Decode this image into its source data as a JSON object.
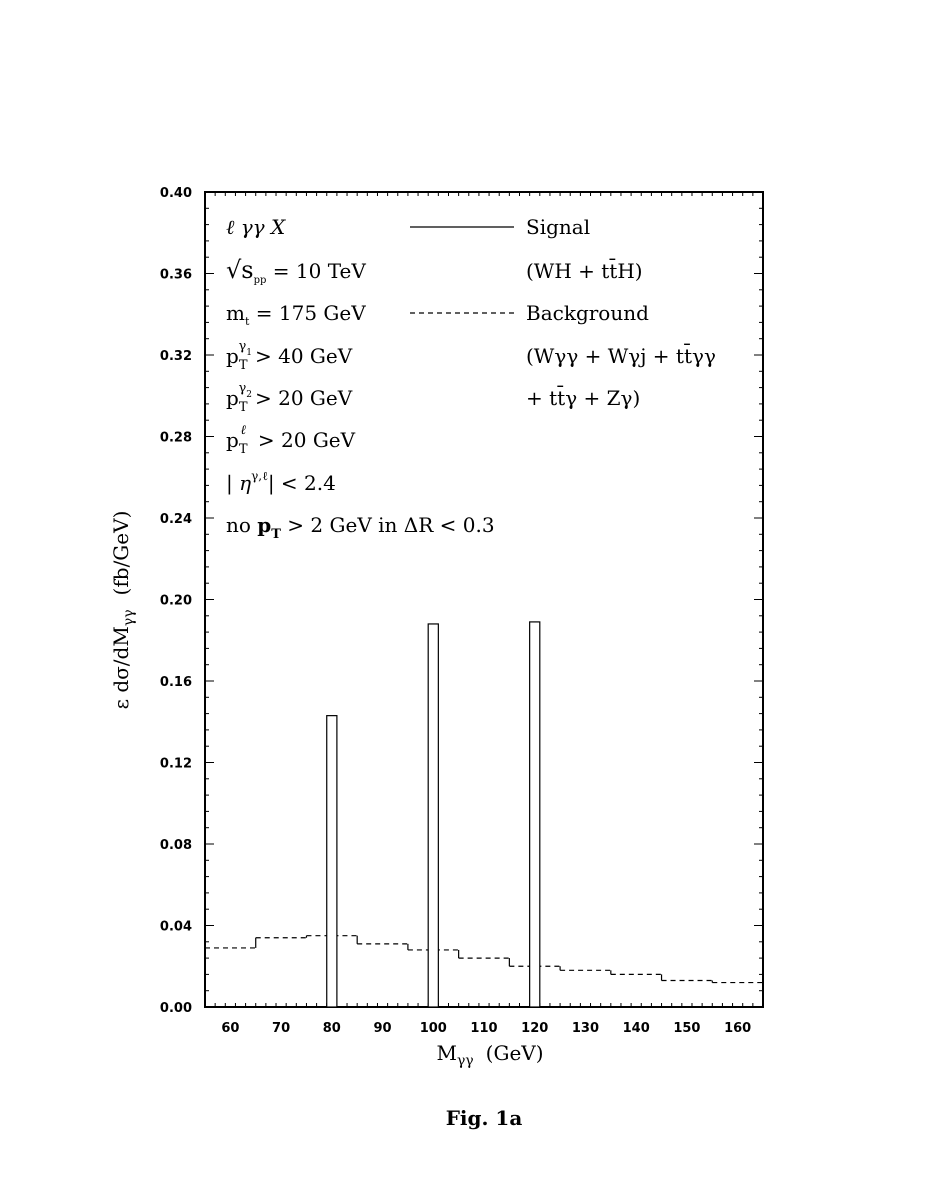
{
  "chart_data": {
    "type": "bar",
    "xlabel": "Mγγ  (GeV)",
    "ylabel": "ε dσ/dMγγ  (fb/GeV)",
    "xlim": [
      55,
      165
    ],
    "ylim": [
      0,
      0.4
    ],
    "x_ticks": [
      "60",
      "70",
      "80",
      "90",
      "100",
      "110",
      "120",
      "130",
      "140",
      "150",
      "160"
    ],
    "y_ticks": [
      "0.00",
      "0.04",
      "0.08",
      "0.12",
      "0.16",
      "0.20",
      "0.24",
      "0.28",
      "0.32",
      "0.36",
      "0.40"
    ],
    "series": [
      {
        "name": "Signal",
        "style": "solid",
        "bars": [
          {
            "x_low": 79,
            "x_high": 81,
            "value": 0.143
          },
          {
            "x_low": 99,
            "x_high": 101,
            "value": 0.188
          },
          {
            "x_low": 119,
            "x_high": 121,
            "value": 0.189
          }
        ]
      },
      {
        "name": "Background",
        "style": "dashed",
        "bins": [
          {
            "x_low": 55,
            "x_high": 65,
            "value": 0.029
          },
          {
            "x_low": 65,
            "x_high": 75,
            "value": 0.034
          },
          {
            "x_low": 75,
            "x_high": 85,
            "value": 0.035
          },
          {
            "x_low": 85,
            "x_high": 95,
            "value": 0.031
          },
          {
            "x_low": 95,
            "x_high": 105,
            "value": 0.028
          },
          {
            "x_low": 105,
            "x_high": 115,
            "value": 0.024
          },
          {
            "x_low": 115,
            "x_high": 125,
            "value": 0.02
          },
          {
            "x_low": 125,
            "x_high": 135,
            "value": 0.018
          },
          {
            "x_low": 135,
            "x_high": 145,
            "value": 0.016
          },
          {
            "x_low": 145,
            "x_high": 155,
            "value": 0.013
          },
          {
            "x_low": 155,
            "x_high": 165,
            "value": 0.012
          }
        ]
      }
    ],
    "cuts": {
      "process": "ℓ γγ X",
      "sqrt_s_prefix": "√s",
      "sqrt_s_sub": "pp",
      "sqrt_s_value": " = 10 TeV",
      "mt_prefix": "m",
      "mt_sub": "t",
      "mt_value": " = 175 GeV",
      "pt1_value": "> 40 GeV",
      "pt2_value": "> 20 GeV",
      "ptl_value": "> 20 GeV",
      "eta_value": "| < 2.4",
      "isolation_prefix": "no ",
      "isolation_value": " > 2 GeV in ΔR < 0.3"
    },
    "legend": {
      "signal_label": "Signal",
      "signal_detail": "(WH + tt̄H)",
      "background_label": "Background",
      "background_detail_1": "(Wγγ + Wγj + tt̄γγ",
      "background_detail_2": "+ tt̄γ + Zγ)"
    }
  },
  "caption": "Fig. 1a"
}
